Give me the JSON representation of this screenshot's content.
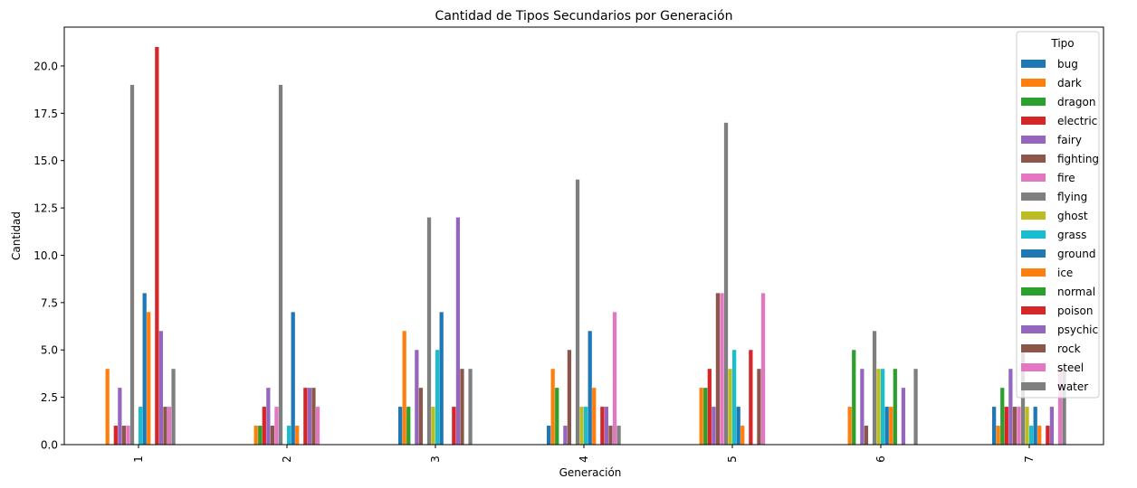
{
  "chart_data": {
    "type": "bar",
    "title": "Cantidad de Tipos Secundarios por Generación",
    "xlabel": "Generación",
    "ylabel": "Cantidad",
    "categories": [
      "1",
      "2",
      "3",
      "4",
      "5",
      "6",
      "7"
    ],
    "ylim": [
      0,
      22.05
    ],
    "yticks": [
      "0.0",
      "2.5",
      "5.0",
      "7.5",
      "10.0",
      "12.5",
      "15.0",
      "17.5",
      "20.0"
    ],
    "legend": {
      "title": "Tipo",
      "position": "top-right"
    },
    "grid": false,
    "series": [
      {
        "name": "bug",
        "color": "#1f77b4",
        "values": [
          0,
          0,
          2,
          1,
          0,
          0,
          2
        ]
      },
      {
        "name": "dark",
        "color": "#ff7f0e",
        "values": [
          4,
          1,
          6,
          4,
          3,
          2,
          1
        ]
      },
      {
        "name": "dragon",
        "color": "#2ca02c",
        "values": [
          0,
          1,
          2,
          3,
          3,
          5,
          3
        ]
      },
      {
        "name": "electric",
        "color": "#d62728",
        "values": [
          1,
          2,
          0,
          0,
          4,
          0,
          2
        ]
      },
      {
        "name": "fairy",
        "color": "#9467bd",
        "values": [
          3,
          3,
          5,
          1,
          2,
          4,
          4
        ]
      },
      {
        "name": "fighting",
        "color": "#8c564b",
        "values": [
          1,
          1,
          3,
          5,
          8,
          1,
          2
        ]
      },
      {
        "name": "fire",
        "color": "#e377c2",
        "values": [
          1,
          2,
          0,
          0,
          8,
          0,
          2
        ]
      },
      {
        "name": "flying",
        "color": "#7f7f7f",
        "values": [
          19,
          19,
          12,
          14,
          17,
          6,
          5
        ]
      },
      {
        "name": "ghost",
        "color": "#bcbd22",
        "values": [
          0,
          0,
          2,
          2,
          4,
          4,
          2
        ]
      },
      {
        "name": "grass",
        "color": "#17becf",
        "values": [
          2,
          1,
          5,
          2,
          5,
          4,
          1
        ]
      },
      {
        "name": "ground",
        "color": "#1f77b4",
        "values": [
          8,
          7,
          7,
          6,
          2,
          2,
          2
        ]
      },
      {
        "name": "ice",
        "color": "#ff7f0e",
        "values": [
          7,
          1,
          0,
          3,
          1,
          2,
          1
        ]
      },
      {
        "name": "normal",
        "color": "#2ca02c",
        "values": [
          0,
          0,
          0,
          0,
          0,
          4,
          0
        ]
      },
      {
        "name": "poison",
        "color": "#d62728",
        "values": [
          21,
          3,
          2,
          2,
          5,
          0,
          1
        ]
      },
      {
        "name": "psychic",
        "color": "#9467bd",
        "values": [
          6,
          3,
          12,
          2,
          0,
          3,
          2
        ]
      },
      {
        "name": "rock",
        "color": "#8c564b",
        "values": [
          2,
          3,
          4,
          1,
          4,
          0,
          0
        ]
      },
      {
        "name": "steel",
        "color": "#e377c2",
        "values": [
          2,
          2,
          0,
          7,
          8,
          0,
          4
        ]
      },
      {
        "name": "water",
        "color": "#7f7f7f",
        "values": [
          4,
          0,
          4,
          1,
          0,
          4,
          4
        ]
      }
    ]
  }
}
